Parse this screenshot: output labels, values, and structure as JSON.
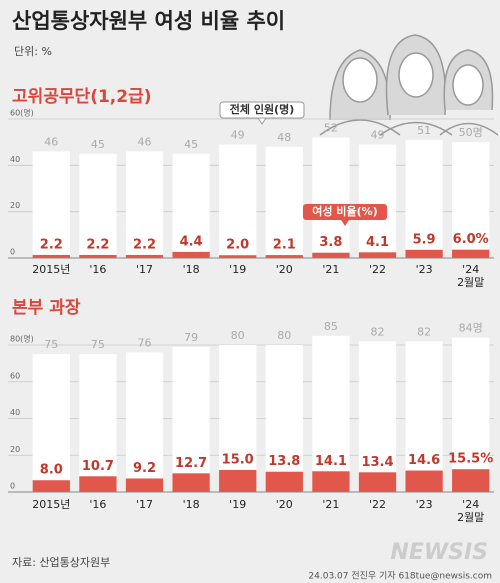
{
  "title": "산업통상자원부 여성 비율 추이",
  "unit": "단위: %",
  "source": "자료: 산업통상자원부",
  "credit": "24.03.07 전진우 기자 618tue@newsis.com",
  "watermark": "NEWSIS",
  "chart_data": [
    {
      "type": "bar",
      "title": "고위공무단(1,2급)",
      "categories": [
        "2015년",
        "'16",
        "'17",
        "'18",
        "'19",
        "'20",
        "'21",
        "'22",
        "'23",
        "'24\n2월말"
      ],
      "ylim": [
        0,
        60
      ],
      "yticks": [
        0,
        20,
        40,
        {
          "value": 60,
          "label": "60(명)"
        }
      ],
      "y2lim": [
        0,
        100
      ],
      "grid": true,
      "series": [
        {
          "name": "전체 인원(명)",
          "color": "#ffffff",
          "values": [
            46,
            45,
            46,
            45,
            49,
            48,
            52,
            49,
            51,
            50
          ],
          "value_labels": [
            "46",
            "45",
            "46",
            "45",
            "49",
            "48",
            "52",
            "49",
            "51",
            "50명"
          ]
        },
        {
          "name": "여성 비율(%)",
          "color": "#e2574c",
          "axis": "y2",
          "values": [
            2.2,
            2.2,
            2.2,
            4.4,
            2.0,
            2.1,
            3.8,
            4.1,
            5.9,
            6.0
          ],
          "value_labels": [
            "2.2",
            "2.2",
            "2.2",
            "4.4",
            "2.0",
            "2.1",
            "3.8",
            "4.1",
            "5.9",
            "6.0%"
          ]
        }
      ]
    },
    {
      "type": "bar",
      "title": "본부 과장",
      "categories": [
        "2015년",
        "'16",
        "'17",
        "'18",
        "'19",
        "'20",
        "'21",
        "'22",
        "'23",
        "'24\n2월말"
      ],
      "ylim": [
        0,
        80
      ],
      "yticks": [
        0,
        20,
        40,
        60,
        {
          "value": 80,
          "label": "80(명)"
        }
      ],
      "y2lim": [
        0,
        100
      ],
      "grid": true,
      "series": [
        {
          "color": "#ffffff",
          "values": [
            75,
            75,
            76,
            79,
            80,
            80,
            85,
            82,
            82,
            84
          ],
          "value_labels": [
            "75",
            "75",
            "76",
            "79",
            "80",
            "80",
            "85",
            "82",
            "82",
            "84명"
          ]
        },
        {
          "color": "#e2574c",
          "axis": "y2",
          "values": [
            8.0,
            10.7,
            9.2,
            12.7,
            15.0,
            13.8,
            14.1,
            13.4,
            14.6,
            15.5
          ],
          "value_labels": [
            "8.0",
            "10.7",
            "9.2",
            "12.7",
            "15.0",
            "13.8",
            "14.1",
            "13.4",
            "14.6",
            "15.5%"
          ]
        }
      ]
    }
  ]
}
